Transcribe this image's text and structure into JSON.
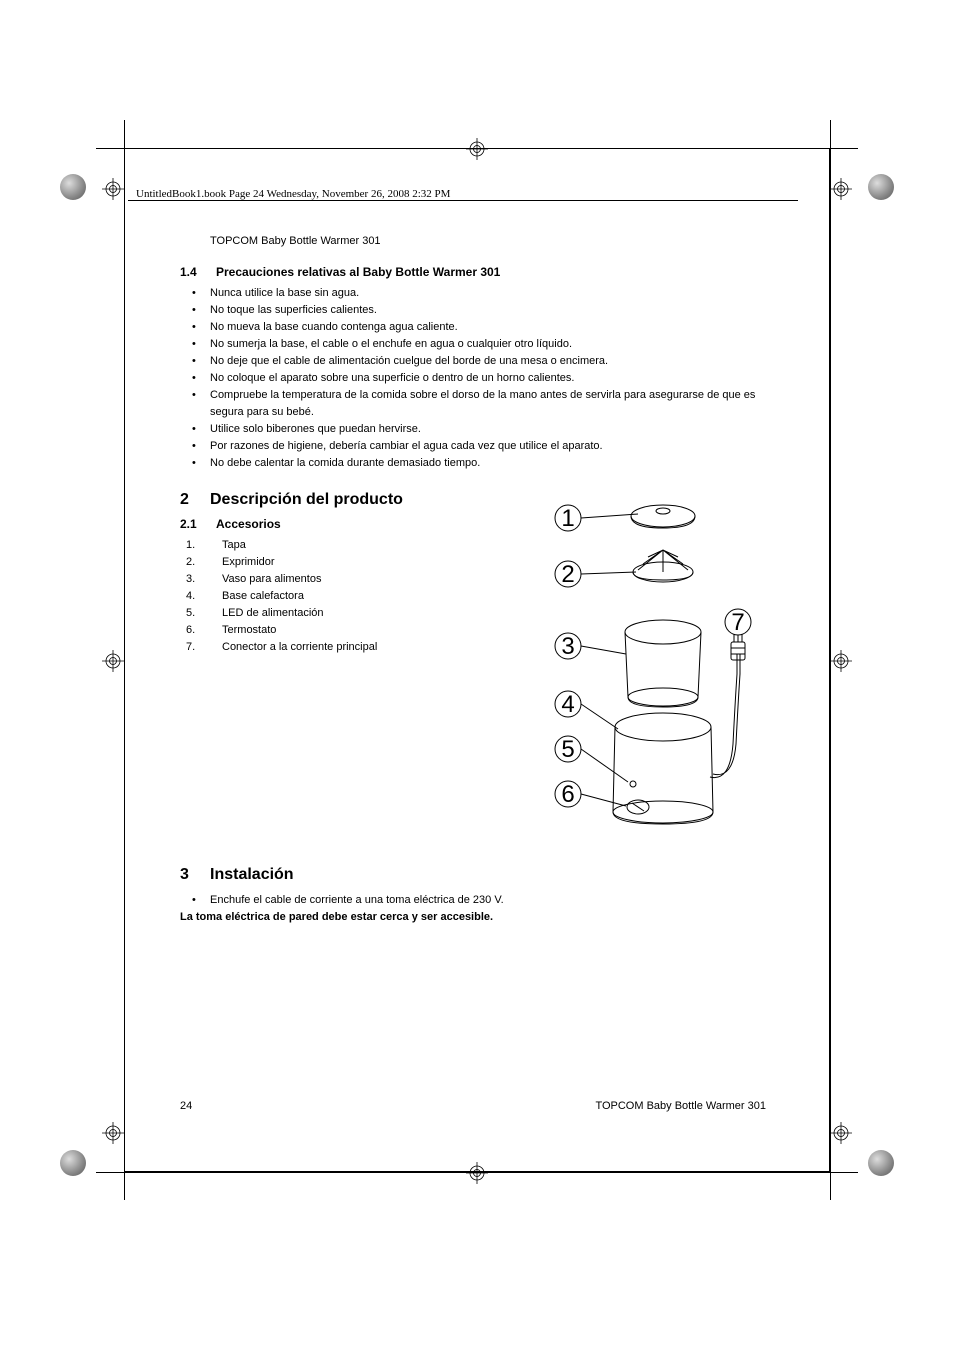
{
  "meta_line": "UntitledBook1.book  Page 24  Wednesday, November 26, 2008  2:32 PM",
  "product_header": "TOPCOM Baby Bottle Warmer 301",
  "section_1_4": {
    "num": "1.4",
    "title": "Precauciones relativas al Baby Bottle Warmer 301",
    "items": [
      "Nunca utilice la base sin agua.",
      "No toque las superficies calientes.",
      "No mueva la base cuando contenga agua caliente.",
      "No sumerja la base, el cable o el enchufe en agua o cualquier otro líquido.",
      "No deje que el cable de alimentación cuelgue del borde de una mesa o encimera.",
      "No coloque el aparato sobre una superficie o dentro de un horno calientes.",
      "Compruebe la temperatura de la comida sobre el dorso de la mano antes de servirla para asegurarse de que es segura para su bebé.",
      "Utilice solo biberones que puedan hervirse.",
      "Por razones de higiene, debería cambiar el agua cada vez que utilice el aparato.",
      "No debe calentar la comida durante demasiado tiempo."
    ]
  },
  "section_2": {
    "num": "2",
    "title": "Descripción del producto"
  },
  "section_2_1": {
    "num": "2.1",
    "title": "Accesorios",
    "items": [
      "Tapa",
      "Exprimidor",
      "Vaso para alimentos",
      "Base calefactora",
      "LED de alimentación",
      "Termostato",
      "Conector a la corriente principal"
    ]
  },
  "section_3": {
    "num": "3",
    "title": "Instalación",
    "items": [
      "Enchufe el cable de corriente a una toma eléctrica de 230 V."
    ],
    "note": "La toma eléctrica de pared debe estar cerca y ser accesible."
  },
  "footer": {
    "page_num": "24",
    "product": "TOPCOM Baby Bottle Warmer 301"
  },
  "diagram": {
    "callouts": [
      "1",
      "2",
      "3",
      "4",
      "5",
      "6",
      "7"
    ],
    "stroke": "#000000",
    "stroke_width": 1,
    "circle_r": 13
  }
}
